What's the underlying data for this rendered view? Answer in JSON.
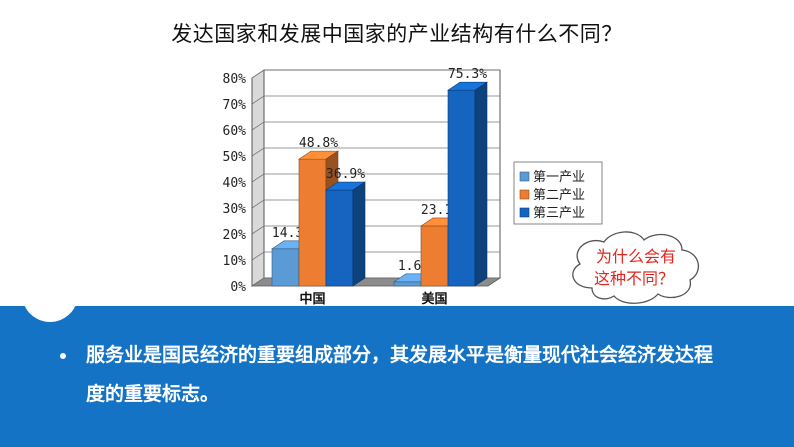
{
  "slide": {
    "title": "发达国家和发展中国家的产业结构有什么不同？",
    "bubble_line1": "为什么会有",
    "bubble_line2": "这种不同？",
    "summary": "服务业是国民经济的重要组成部分，其发展水平是衡量现代社会经济发达程度的重要标志。"
  },
  "chart_data": {
    "type": "bar",
    "three_d": true,
    "categories": [
      "中国",
      "美国"
    ],
    "series": [
      {
        "name": "第一产业",
        "values": [
          14.3,
          1.6
        ],
        "color": "#5b9bd5"
      },
      {
        "name": "第二产业",
        "values": [
          48.8,
          23.1
        ],
        "color": "#ed7d31"
      },
      {
        "name": "第三产业",
        "values": [
          36.9,
          75.3
        ],
        "color": "#1565c0"
      }
    ],
    "data_labels": [
      [
        "14.3%",
        "48.8%",
        "36.9%"
      ],
      [
        "1.6%",
        "23.1%",
        "75.3%"
      ]
    ],
    "yticks": [
      "0%",
      "10%",
      "20%",
      "30%",
      "40%",
      "50%",
      "60%",
      "70%",
      "80%"
    ],
    "ylim": [
      0,
      80
    ],
    "grid": true,
    "legend": "right"
  }
}
